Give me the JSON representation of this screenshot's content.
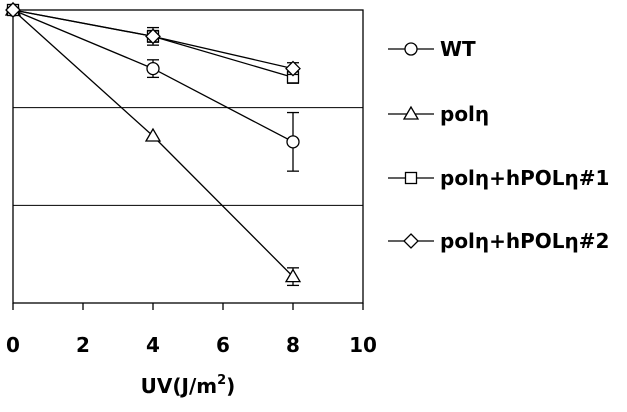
{
  "chart_data": {
    "type": "line",
    "x": [
      0,
      4,
      8
    ],
    "xlim": [
      0,
      10
    ],
    "xticks": [
      "0",
      "2",
      "4",
      "6",
      "8",
      "10"
    ],
    "ylim": [
      0,
      1
    ],
    "xlabel_prefix": "UV(J/m",
    "xlabel_sup": "2",
    "xlabel_suffix": ")",
    "grid": "horizontal",
    "legend_position": "right",
    "series": [
      {
        "name": "WT",
        "marker": "circle",
        "values": [
          1.0,
          0.8,
          0.55
        ],
        "errors": [
          0,
          0.03,
          0.1
        ]
      },
      {
        "name": "polη",
        "marker": "triangle",
        "values": [
          1.0,
          0.57,
          0.09
        ],
        "errors": [
          0,
          0.0,
          0.03
        ]
      },
      {
        "name": "polη+hPOLη#1",
        "marker": "square",
        "values": [
          1.0,
          0.91,
          0.77
        ],
        "errors": [
          0,
          0.02,
          0.02
        ]
      },
      {
        "name": "polη+hPOLη#2",
        "marker": "diamond",
        "values": [
          1.0,
          0.91,
          0.8
        ],
        "errors": [
          0,
          0.03,
          0.02
        ]
      }
    ]
  }
}
